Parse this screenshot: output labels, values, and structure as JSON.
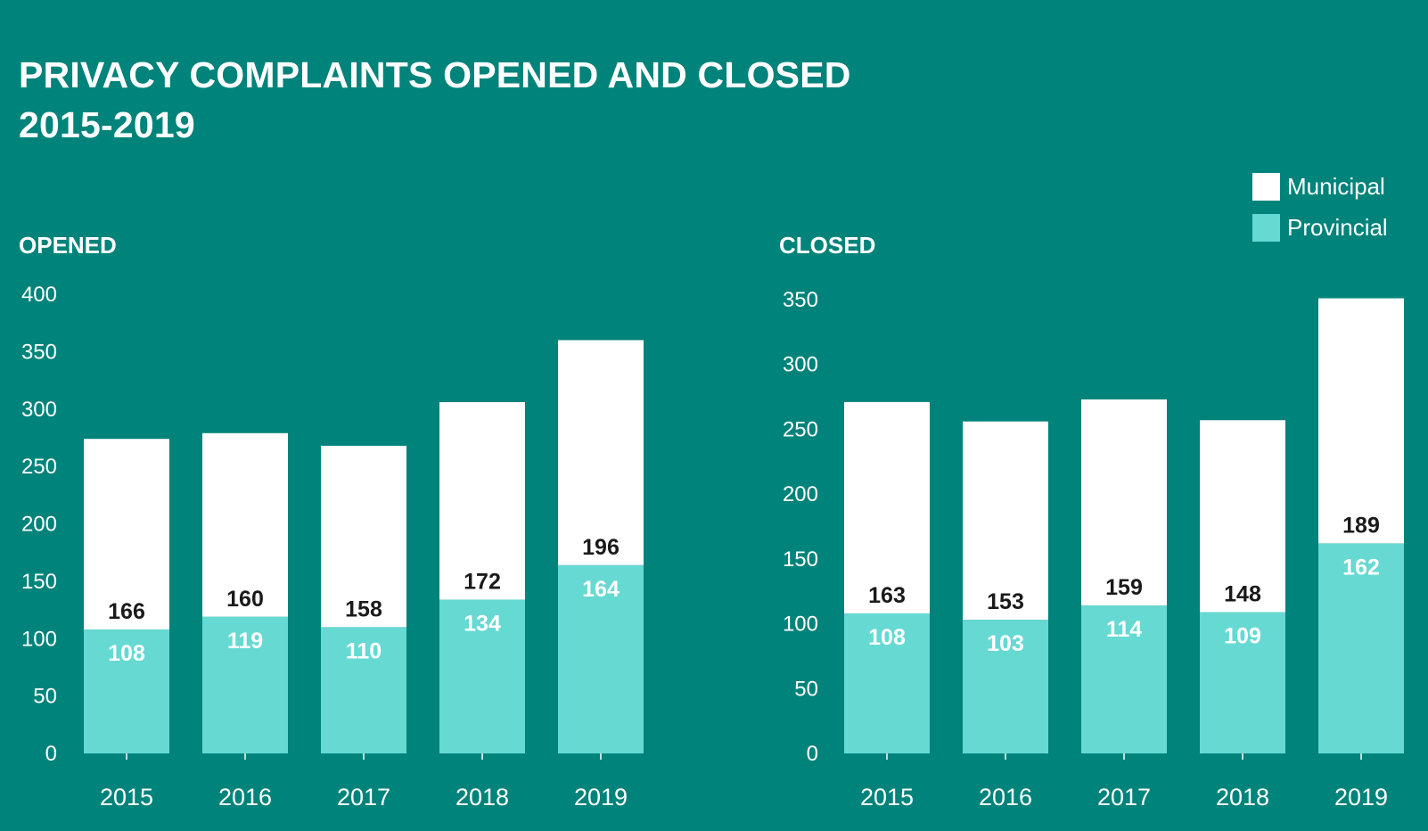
{
  "title_lines": [
    "PRIVACY COMPLAINTS OPENED AND CLOSED",
    "2015-2019"
  ],
  "legend": [
    {
      "label": "Municipal",
      "color": "#ffffff"
    },
    {
      "label": "Provincial",
      "color": "#66d9d3"
    }
  ],
  "colors": {
    "background": "#00837a",
    "provincial": "#66d9d3",
    "municipal": "#ffffff"
  },
  "chart_data": [
    {
      "type": "bar",
      "stacked": true,
      "title": "OPENED",
      "categories": [
        "2015",
        "2016",
        "2017",
        "2018",
        "2019"
      ],
      "series": [
        {
          "name": "Provincial",
          "values": [
            108,
            119,
            110,
            134,
            164
          ]
        },
        {
          "name": "Municipal",
          "values": [
            166,
            160,
            158,
            172,
            196
          ]
        }
      ],
      "ylim": [
        0,
        400
      ],
      "yticks": [
        0,
        50,
        100,
        150,
        200,
        250,
        300,
        350,
        400
      ],
      "legend_position": "top-right",
      "grid": false
    },
    {
      "type": "bar",
      "stacked": true,
      "title": "CLOSED",
      "categories": [
        "2015",
        "2016",
        "2017",
        "2018",
        "2019"
      ],
      "series": [
        {
          "name": "Provincial",
          "values": [
            108,
            103,
            114,
            109,
            162
          ]
        },
        {
          "name": "Municipal",
          "values": [
            163,
            153,
            159,
            148,
            189
          ]
        }
      ],
      "ylim": [
        0,
        350
      ],
      "yticks": [
        0,
        50,
        100,
        150,
        200,
        250,
        300,
        350
      ],
      "legend_position": "top-right",
      "grid": false
    }
  ]
}
